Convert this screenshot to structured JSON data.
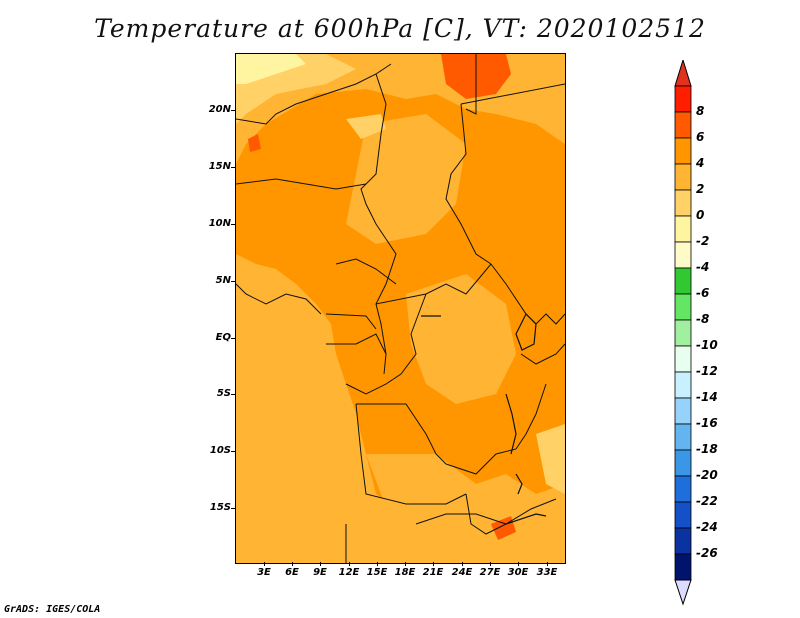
{
  "title": "Temperature at 600hPa [C], VT: 2020102512",
  "credit": "GrADS: IGES/COLA",
  "map": {
    "lat_labels": [
      "20N",
      "15N",
      "10N",
      "5N",
      "EQ",
      "5S",
      "10S",
      "15S"
    ],
    "lon_labels": [
      "3E",
      "6E",
      "9E",
      "12E",
      "15E",
      "18E",
      "21E",
      "24E",
      "27E",
      "30E",
      "33E"
    ],
    "field": "Temperature",
    "units": "C",
    "level": "600hPa"
  },
  "colorbar": {
    "labels": [
      "8",
      "6",
      "4",
      "2",
      "0",
      "-2",
      "-4",
      "-6",
      "-8",
      "-10",
      "-12",
      "-14",
      "-16",
      "-18",
      "-20",
      "-22",
      "-24",
      "-26"
    ],
    "colors": [
      "#ff1e00",
      "#ff5a00",
      "#ff9600",
      "#ffb433",
      "#ffd166",
      "#fff5a0",
      "#fffbc8",
      "#32c832",
      "#64e664",
      "#a0f0a0",
      "#e8fff0",
      "#c8f0ff",
      "#96d2fa",
      "#64b4f0",
      "#3c96e6",
      "#1e6edc",
      "#1450c8",
      "#0a32a0",
      "#00146e"
    ],
    "top_arrow_color": "#e0321e",
    "bottom_arrow_color": "#dcdcff"
  },
  "fill_colors": {
    "warm_4_6": "#ff9600",
    "warm_2_4": "#ffb433",
    "mild_0_2": "#ffd166",
    "cool": "#fff5a0",
    "hot": "#ff5a00"
  }
}
